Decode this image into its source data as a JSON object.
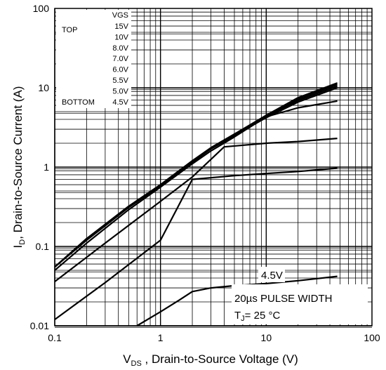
{
  "chart_data": {
    "type": "line",
    "xscale": "log",
    "yscale": "log",
    "xlim": [
      0.1,
      100
    ],
    "ylim": [
      0.01,
      100
    ],
    "grid": true,
    "x_ticks": [
      "0.1",
      "1",
      "10",
      "100"
    ],
    "y_ticks": [
      "0.01",
      "0.1",
      "1",
      "10",
      "100"
    ],
    "xlabel": {
      "main": "V",
      "sub": "DS",
      "rest": " , Drain-to-Source Voltage (V)"
    },
    "ylabel": {
      "main": "I",
      "sub": "D",
      "rest": ",  Drain-to-Source Current (A)"
    },
    "legend": {
      "header": "VGS",
      "top_label": "TOP",
      "bottom_label": "BOTTOM",
      "entries": [
        "15V",
        "10V",
        "8.0V",
        "7.0V",
        "6.0V",
        "5.5V",
        "5.0V",
        "4.5V"
      ]
    },
    "annotations": {
      "curve_label": "4.5V",
      "pulse": "20µs PULSE WIDTH",
      "tj_main": "T",
      "tj_sub": "J",
      "tj_rest": "= 25 °C"
    },
    "series": [
      {
        "name": "15V",
        "x": [
          0.1,
          0.2,
          0.5,
          1,
          2,
          3,
          5,
          10,
          20,
          47
        ],
        "y": [
          0.055,
          0.125,
          0.32,
          0.6,
          1.2,
          1.75,
          2.6,
          4.5,
          7.5,
          11.5
        ]
      },
      {
        "name": "10V",
        "x": [
          0.1,
          0.2,
          0.5,
          1,
          2,
          3,
          5,
          10,
          20,
          47
        ],
        "y": [
          0.055,
          0.125,
          0.32,
          0.6,
          1.2,
          1.75,
          2.6,
          4.4,
          7.2,
          11
        ]
      },
      {
        "name": "8.0V",
        "x": [
          0.1,
          0.2,
          0.5,
          1,
          2,
          3,
          5,
          10,
          20,
          47
        ],
        "y": [
          0.055,
          0.125,
          0.32,
          0.6,
          1.2,
          1.75,
          2.6,
          4.3,
          6.9,
          10.5
        ]
      },
      {
        "name": "7.0V",
        "x": [
          0.1,
          0.2,
          0.5,
          1,
          2,
          3,
          5,
          10,
          20,
          47
        ],
        "y": [
          0.055,
          0.12,
          0.31,
          0.58,
          1.15,
          1.7,
          2.5,
          4.2,
          6.6,
          10
        ]
      },
      {
        "name": "6.0V",
        "x": [
          0.1,
          0.2,
          0.5,
          1,
          2,
          3,
          5,
          10,
          20,
          47
        ],
        "y": [
          0.05,
          0.11,
          0.29,
          0.56,
          1.1,
          1.6,
          2.4,
          4.3,
          5.6,
          6.8
        ]
      },
      {
        "name": "5.5V",
        "x": [
          0.1,
          0.3,
          1,
          2,
          4,
          10,
          20,
          47
        ],
        "y": [
          0.036,
          0.11,
          0.37,
          0.75,
          1.8,
          2,
          2.1,
          2.3
        ]
      },
      {
        "name": "5.0V",
        "x": [
          0.1,
          0.3,
          1,
          2,
          5,
          10,
          20,
          47
        ],
        "y": [
          0.012,
          0.035,
          0.12,
          0.7,
          0.78,
          0.83,
          0.88,
          0.97
        ]
      },
      {
        "name": "4.5V",
        "x": [
          0.6,
          1,
          1.5,
          2,
          3,
          5,
          10,
          20,
          47
        ],
        "y": [
          0.01,
          0.015,
          0.021,
          0.027,
          0.03,
          0.032,
          0.034,
          0.037,
          0.042
        ]
      }
    ]
  }
}
